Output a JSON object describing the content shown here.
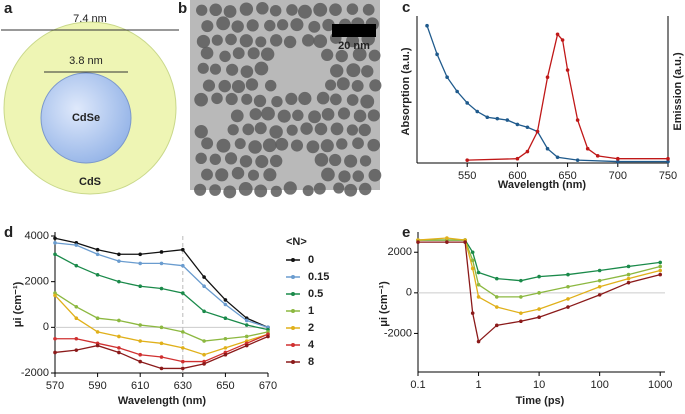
{
  "diagram": {
    "label": "a",
    "outer_size": "7.4 nm",
    "inner_size": "3.8 nm",
    "core": "CdSe",
    "shell": "CdS"
  },
  "micrograph": {
    "label": "b",
    "scale_bar": "20 nm"
  },
  "chart_data": [
    {
      "type": "line",
      "label": "c",
      "xlabel": "Wavelength (nm)",
      "ylabel": "Absorption (a.u.)",
      "y2label": "Emission (a.u.)",
      "xlim": [
        500,
        750
      ],
      "xticks": [
        550,
        600,
        650,
        700,
        750
      ],
      "ylim": [
        0,
        1
      ],
      "series": [
        {
          "name": "Absorption",
          "color": "#1f5a8c",
          "x": [
            510,
            520,
            530,
            540,
            550,
            560,
            570,
            580,
            590,
            600,
            610,
            620,
            630,
            640,
            660,
            700,
            750
          ],
          "values": [
            0.96,
            0.76,
            0.6,
            0.5,
            0.42,
            0.36,
            0.32,
            0.31,
            0.3,
            0.27,
            0.25,
            0.22,
            0.1,
            0.04,
            0.02,
            0.01,
            0.01
          ]
        },
        {
          "name": "Emission",
          "color": "#c01818",
          "x": [
            550,
            600,
            610,
            620,
            630,
            640,
            645,
            650,
            660,
            670,
            680,
            700,
            750
          ],
          "values": [
            0.02,
            0.03,
            0.08,
            0.22,
            0.6,
            0.9,
            0.86,
            0.65,
            0.3,
            0.1,
            0.05,
            0.03,
            0.03
          ]
        }
      ]
    },
    {
      "type": "line",
      "label": "d",
      "xlabel": "Wavelength (nm)",
      "ylabel": "μi (cm⁻¹)",
      "legend_title": "<N>",
      "xlim": [
        570,
        670
      ],
      "xticks": [
        570,
        590,
        610,
        630,
        650,
        670
      ],
      "ylim": [
        -2000,
        4000
      ],
      "yticks": [
        -2000,
        0,
        2000,
        4000
      ],
      "reference_line_x": 630,
      "x": [
        570,
        580,
        590,
        600,
        610,
        620,
        630,
        640,
        650,
        660,
        670
      ],
      "series": [
        {
          "name": "0",
          "color": "#111111",
          "values": [
            3900,
            3700,
            3400,
            3200,
            3200,
            3300,
            3400,
            2200,
            1200,
            400,
            0
          ]
        },
        {
          "name": "0.15",
          "color": "#6a9ccf",
          "values": [
            3700,
            3600,
            3200,
            2900,
            2800,
            2800,
            2700,
            1800,
            1000,
            300,
            0
          ]
        },
        {
          "name": "0.5",
          "color": "#1a8a4a",
          "values": [
            3200,
            2700,
            2300,
            2000,
            1800,
            1700,
            1500,
            700,
            400,
            100,
            -100
          ]
        },
        {
          "name": "1",
          "color": "#8cb840",
          "values": [
            1500,
            900,
            400,
            300,
            100,
            0,
            -200,
            -600,
            -500,
            -400,
            -200
          ]
        },
        {
          "name": "2",
          "color": "#e0b01a",
          "values": [
            1400,
            400,
            -200,
            -400,
            -600,
            -700,
            -900,
            -1200,
            -900,
            -600,
            -300
          ]
        },
        {
          "name": "4",
          "color": "#d03030",
          "values": [
            -500,
            -500,
            -700,
            -900,
            -1200,
            -1300,
            -1500,
            -1500,
            -1100,
            -700,
            -300
          ]
        },
        {
          "name": "8",
          "color": "#8b1a1a",
          "values": [
            -1100,
            -1000,
            -800,
            -1100,
            -1500,
            -1800,
            -1800,
            -1600,
            -1200,
            -800,
            -400
          ]
        }
      ]
    },
    {
      "type": "line",
      "label": "e",
      "xlabel": "Time (ps)",
      "ylabel": "μi (cm⁻¹)",
      "log_x": true,
      "xlim": [
        0.1,
        1200
      ],
      "xticks": [
        0.1,
        1,
        10,
        100,
        1000
      ],
      "ylim": [
        -3900,
        2800
      ],
      "yticks": [
        -2000,
        0,
        2000
      ],
      "x": [
        0.1,
        0.3,
        0.6,
        0.8,
        1,
        2,
        5,
        10,
        30,
        100,
        300,
        1000
      ],
      "series": [
        {
          "color": "#1a8a4a",
          "values": [
            2600,
            2600,
            2600,
            2000,
            1000,
            700,
            600,
            800,
            900,
            1100,
            1300,
            1500
          ]
        },
        {
          "color": "#8cb840",
          "values": [
            2600,
            2600,
            2600,
            1600,
            400,
            -200,
            -200,
            0,
            300,
            600,
            900,
            1300
          ]
        },
        {
          "color": "#e0b01a",
          "values": [
            2600,
            2700,
            2600,
            1200,
            -200,
            -700,
            -1000,
            -800,
            -300,
            300,
            700,
            1100
          ]
        },
        {
          "color": "#8b1a1a",
          "values": [
            2500,
            2500,
            2500,
            -1000,
            -2400,
            -1600,
            -1400,
            -1200,
            -700,
            -100,
            500,
            900
          ]
        }
      ]
    }
  ]
}
